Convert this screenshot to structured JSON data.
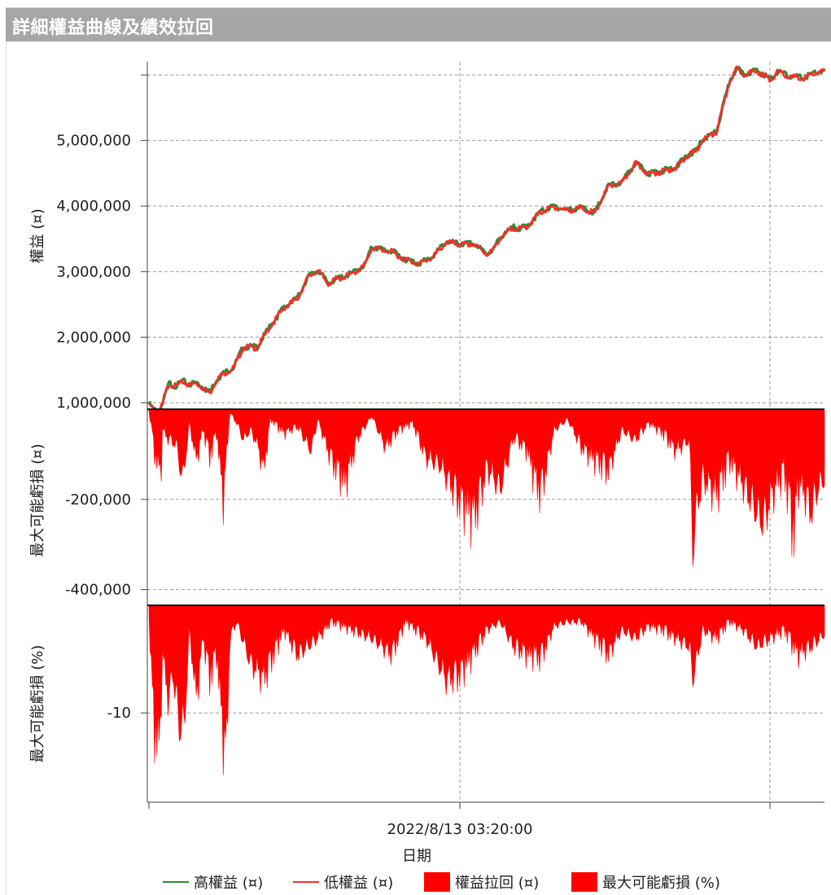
{
  "window": {
    "title": "詳細權益曲線及績效拉回"
  },
  "chart_data": [
    {
      "type": "line",
      "panel": "equity",
      "ylabel": "權益 (¤)",
      "ylim": [
        900000,
        6200000
      ],
      "yticks": [
        1000000,
        2000000,
        3000000,
        4000000,
        5000000,
        6000000
      ],
      "ytick_labels": [
        "1,000,000",
        "2,000,000",
        "3,000,000",
        "4,000,000",
        "5,000,000",
        ""
      ],
      "x": [
        0,
        0.003,
        0.006,
        0.01,
        0.013,
        0.016,
        0.02,
        0.025,
        0.03,
        0.04,
        0.05,
        0.06,
        0.07,
        0.08,
        0.09,
        0.1,
        0.11,
        0.125,
        0.14,
        0.16,
        0.18,
        0.2,
        0.22,
        0.235,
        0.25,
        0.265,
        0.28,
        0.3,
        0.32,
        0.33,
        0.36,
        0.38,
        0.4,
        0.42,
        0.44,
        0.46,
        0.48,
        0.5,
        0.51,
        0.52,
        0.54,
        0.55,
        0.56,
        0.58,
        0.6,
        0.62,
        0.64,
        0.66,
        0.68,
        0.7,
        0.72,
        0.74,
        0.76,
        0.78,
        0.8,
        0.81,
        0.82,
        0.84,
        0.86,
        0.87,
        0.88,
        0.9,
        0.91,
        0.92,
        0.93,
        0.95,
        0.97,
        0.985,
        1.0
      ],
      "series": [
        {
          "name": "高權益 (¤)",
          "color": "#2e8b2e",
          "values": [
            1000000,
            970000,
            930000,
            905000,
            895000,
            920000,
            1000000,
            1180000,
            1320000,
            1280000,
            1350000,
            1300000,
            1330000,
            1260000,
            1180000,
            1380000,
            1470000,
            1560000,
            1880000,
            1870000,
            2200000,
            2480000,
            2620000,
            2940000,
            3050000,
            2850000,
            2920000,
            2990000,
            3130000,
            3400000,
            3330000,
            3210000,
            3150000,
            3250000,
            3480000,
            3440000,
            3450000,
            3300000,
            3360000,
            3550000,
            3700000,
            3680000,
            3720000,
            3940000,
            4020000,
            3960000,
            4000000,
            3920000,
            4330000,
            4380000,
            4680000,
            4520000,
            4560000,
            4620000,
            4820000,
            4860000,
            5050000,
            5150000,
            5950000,
            6120000,
            6050000,
            6080000,
            6030000,
            5950000,
            6070000,
            6000000,
            5980000,
            6060000,
            6080000
          ]
        },
        {
          "name": "低權益 (¤)",
          "color": "#ff2a2a",
          "values": [
            995000,
            960000,
            920000,
            895000,
            885000,
            910000,
            990000,
            1170000,
            1310000,
            1270000,
            1340000,
            1290000,
            1320000,
            1250000,
            1170000,
            1370000,
            1460000,
            1550000,
            1870000,
            1860000,
            2190000,
            2470000,
            2610000,
            2930000,
            3040000,
            2840000,
            2910000,
            2980000,
            3120000,
            3390000,
            3320000,
            3200000,
            3140000,
            3240000,
            3470000,
            3430000,
            3440000,
            3290000,
            3350000,
            3540000,
            3690000,
            3670000,
            3710000,
            3930000,
            4010000,
            3950000,
            3990000,
            3910000,
            4320000,
            4370000,
            4670000,
            4510000,
            4550000,
            4610000,
            4810000,
            4850000,
            5040000,
            5140000,
            5940000,
            6110000,
            6040000,
            6070000,
            6020000,
            5940000,
            6060000,
            5990000,
            5970000,
            6050000,
            6070000
          ]
        }
      ]
    },
    {
      "type": "area",
      "panel": "drawdown-abs",
      "ylabel": "最大可能虧損 (¤)",
      "ylim": [
        -435000,
        0
      ],
      "yticks": [
        -200000,
        -400000
      ],
      "ytick_labels": [
        "-200,000",
        "-400,000"
      ],
      "series": [
        {
          "name": "權益拉回 (¤)",
          "color": "#ff0000",
          "x": [
            0,
            0.01,
            0.018,
            0.02,
            0.03,
            0.04,
            0.05,
            0.06,
            0.07,
            0.08,
            0.09,
            0.1,
            0.11,
            0.12,
            0.13,
            0.14,
            0.15,
            0.16,
            0.17,
            0.18,
            0.2,
            0.22,
            0.24,
            0.25,
            0.27,
            0.29,
            0.31,
            0.33,
            0.35,
            0.37,
            0.39,
            0.41,
            0.43,
            0.45,
            0.46,
            0.47,
            0.48,
            0.49,
            0.5,
            0.52,
            0.54,
            0.56,
            0.57,
            0.58,
            0.6,
            0.62,
            0.64,
            0.66,
            0.68,
            0.7,
            0.72,
            0.74,
            0.76,
            0.78,
            0.8,
            0.805,
            0.81,
            0.82,
            0.84,
            0.86,
            0.88,
            0.9,
            0.91,
            0.92,
            0.94,
            0.955,
            0.96,
            0.97,
            0.98,
            0.99,
            1.0
          ],
          "values": [
            -5000,
            -150000,
            -185000,
            -60000,
            -90000,
            -100000,
            -210000,
            -40000,
            -150000,
            -60000,
            -140000,
            -70000,
            -260000,
            -10000,
            -40000,
            -90000,
            -60000,
            -100000,
            -180000,
            -30000,
            -70000,
            -50000,
            -120000,
            -30000,
            -150000,
            -220000,
            -80000,
            -20000,
            -110000,
            -60000,
            -40000,
            -140000,
            -160000,
            -230000,
            -270000,
            -290000,
            -320000,
            -260000,
            -170000,
            -230000,
            -80000,
            -120000,
            -200000,
            -250000,
            -60000,
            -30000,
            -110000,
            -150000,
            -180000,
            -60000,
            -90000,
            -40000,
            -70000,
            -120000,
            -90000,
            -410000,
            -300000,
            -200000,
            -250000,
            -150000,
            -220000,
            -300000,
            -330000,
            -260000,
            -180000,
            -380000,
            -220000,
            -240000,
            -300000,
            -230000,
            -200000
          ]
        }
      ]
    },
    {
      "type": "area",
      "panel": "drawdown-pct",
      "ylabel": "最大可能虧損 (%)",
      "ylim": [
        -18.3,
        0
      ],
      "yticks": [
        -10
      ],
      "ytick_labels": [
        "-10"
      ],
      "series": [
        {
          "name": "最大可能虧損 (%)",
          "color": "#ff0000",
          "x": [
            0,
            0.005,
            0.01,
            0.016,
            0.02,
            0.03,
            0.035,
            0.045,
            0.052,
            0.06,
            0.07,
            0.08,
            0.09,
            0.1,
            0.11,
            0.115,
            0.12,
            0.13,
            0.15,
            0.17,
            0.2,
            0.22,
            0.25,
            0.27,
            0.3,
            0.33,
            0.36,
            0.38,
            0.41,
            0.44,
            0.46,
            0.48,
            0.5,
            0.52,
            0.54,
            0.56,
            0.58,
            0.6,
            0.62,
            0.64,
            0.66,
            0.68,
            0.7,
            0.72,
            0.74,
            0.76,
            0.78,
            0.8,
            0.805,
            0.82,
            0.84,
            0.86,
            0.88,
            0.9,
            0.92,
            0.94,
            0.96,
            0.98,
            1.0
          ],
          "values": [
            -1,
            -12,
            -16.5,
            -17.3,
            -6,
            -12,
            -8,
            -14.5,
            -15,
            -3,
            -11.5,
            -4,
            -9,
            -6,
            -16,
            -17.8,
            -4,
            -2,
            -7,
            -9,
            -3,
            -6,
            -4,
            -2,
            -3,
            -4,
            -6,
            -2,
            -4,
            -9,
            -8.5,
            -6,
            -3,
            -2,
            -5,
            -6,
            -6.5,
            -2.5,
            -2,
            -2,
            -4,
            -6,
            -3,
            -4,
            -2.5,
            -3,
            -4,
            -5,
            -8.9,
            -3,
            -4,
            -2,
            -3,
            -5,
            -4,
            -3,
            -6,
            -5,
            -3.5
          ]
        }
      ]
    }
  ],
  "xaxis": {
    "tick_label": "2022/8/13 03:20:00",
    "title": "日期"
  },
  "legend": [
    {
      "label": "高權益 (¤)",
      "kind": "line",
      "color": "#2e8b2e"
    },
    {
      "label": "低權益 (¤)",
      "kind": "line",
      "color": "#ff2a2a"
    },
    {
      "label": "權益拉回 (¤)",
      "kind": "box",
      "color": "#ff0000"
    },
    {
      "label": "最大可能虧損 (%)",
      "kind": "box",
      "color": "#ff0000"
    }
  ]
}
